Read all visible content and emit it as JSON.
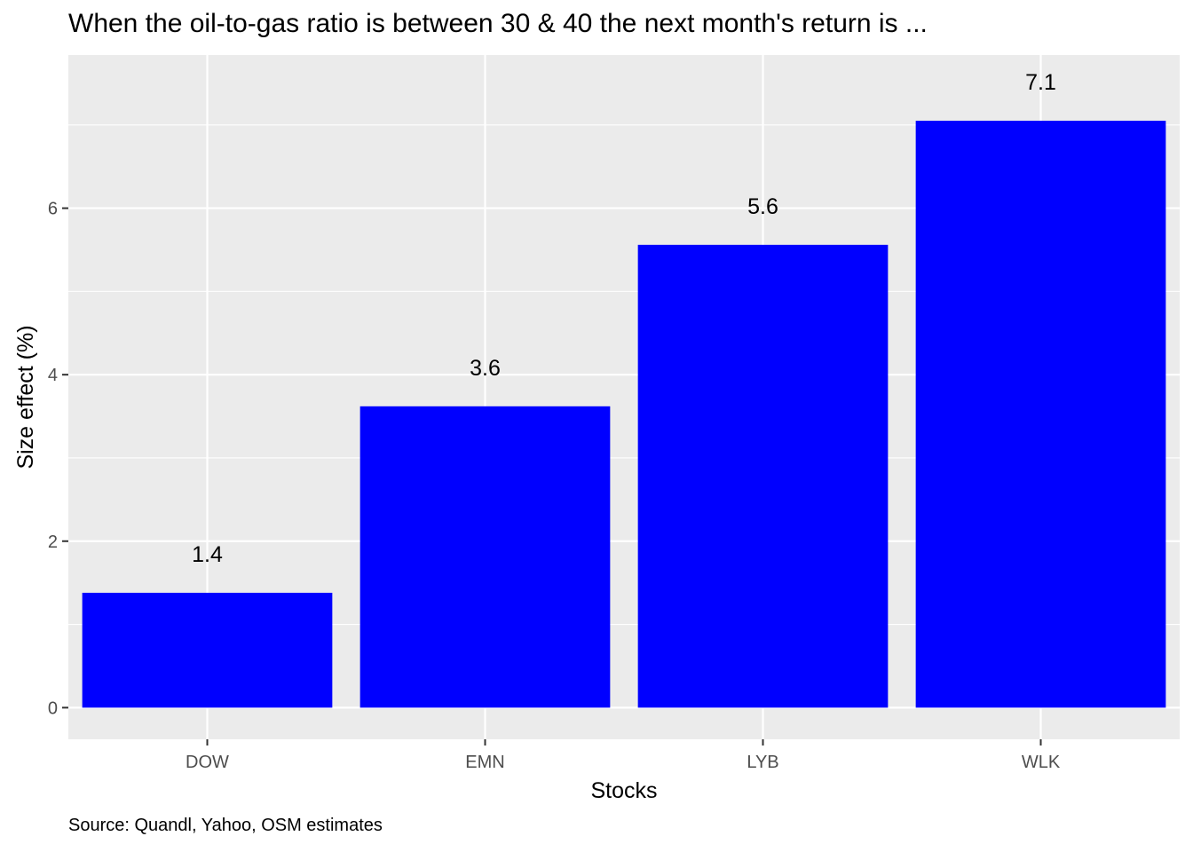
{
  "chart_data": {
    "type": "bar",
    "title": "When the oil-to-gas ratio is between 30 & 40 the next month's return is ...",
    "caption": "Source: Quandl, Yahoo, OSM estimates",
    "xlabel": "Stocks",
    "ylabel": "Size effect (%)",
    "categories": [
      "DOW",
      "EMN",
      "LYB",
      "WLK"
    ],
    "values": [
      1.38,
      3.62,
      5.56,
      7.05
    ],
    "data_labels": [
      "1.4",
      "3.6",
      "5.6",
      "7.1"
    ],
    "ylim": [
      -0.38,
      7.84
    ],
    "yticks": [
      0,
      2,
      4,
      6
    ],
    "ytick_labels": [
      "0",
      "2",
      "4",
      "6"
    ],
    "grid": true,
    "legend": "none",
    "colors": {
      "bar": "#0000ff",
      "panel": "#ebebeb",
      "grid": "#ffffff"
    }
  }
}
